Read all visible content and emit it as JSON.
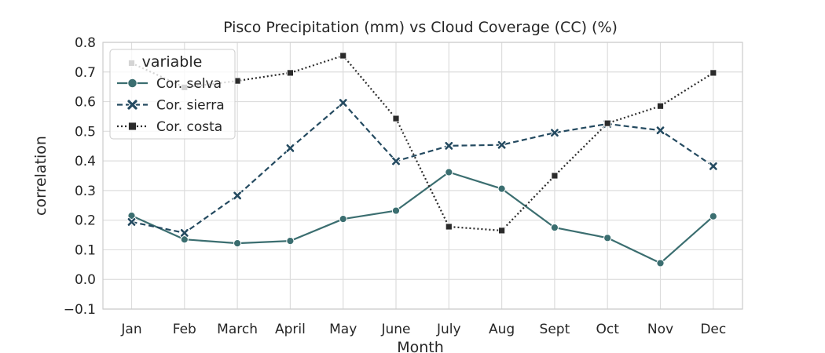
{
  "chart_data": {
    "type": "line",
    "title": "Pisco Precipitation (mm) vs Cloud Coverage (CC) (%)",
    "xlabel": "Month",
    "ylabel": "correlation",
    "categories": [
      "Jan",
      "Feb",
      "March",
      "April",
      "May",
      "June",
      "July",
      "Aug",
      "Sept",
      "Oct",
      "Nov",
      "Dec"
    ],
    "ylim": [
      -0.1,
      0.8
    ],
    "yticks": [
      -0.1,
      0.0,
      0.1,
      0.2,
      0.3,
      0.4,
      0.5,
      0.6,
      0.7,
      0.8
    ],
    "ytick_labels": [
      "−0.1",
      "0.0",
      "0.1",
      "0.2",
      "0.3",
      "0.4",
      "0.5",
      "0.6",
      "0.7",
      "0.8"
    ],
    "grid": true,
    "legend": {
      "title": "variable",
      "placement": "top-left"
    },
    "series": [
      {
        "name": "Cor. selva",
        "color": "#3b6e70",
        "linestyle": "solid",
        "marker": "circle",
        "values": [
          0.215,
          0.135,
          0.122,
          0.13,
          0.204,
          0.232,
          0.362,
          0.306,
          0.175,
          0.14,
          0.055,
          0.213
        ]
      },
      {
        "name": "Cor. sierra",
        "color": "#244a60",
        "linestyle": "dashed",
        "marker": "x",
        "values": [
          0.194,
          0.157,
          0.283,
          0.443,
          0.596,
          0.399,
          0.451,
          0.454,
          0.495,
          0.525,
          0.503,
          0.382
        ]
      },
      {
        "name": "Cor. costa",
        "color": "#2b2b2b",
        "linestyle": "dotted",
        "marker": "square",
        "values": [
          0.73,
          0.648,
          0.67,
          0.697,
          0.755,
          0.543,
          0.178,
          0.165,
          0.35,
          0.527,
          0.585,
          0.697
        ]
      }
    ]
  }
}
